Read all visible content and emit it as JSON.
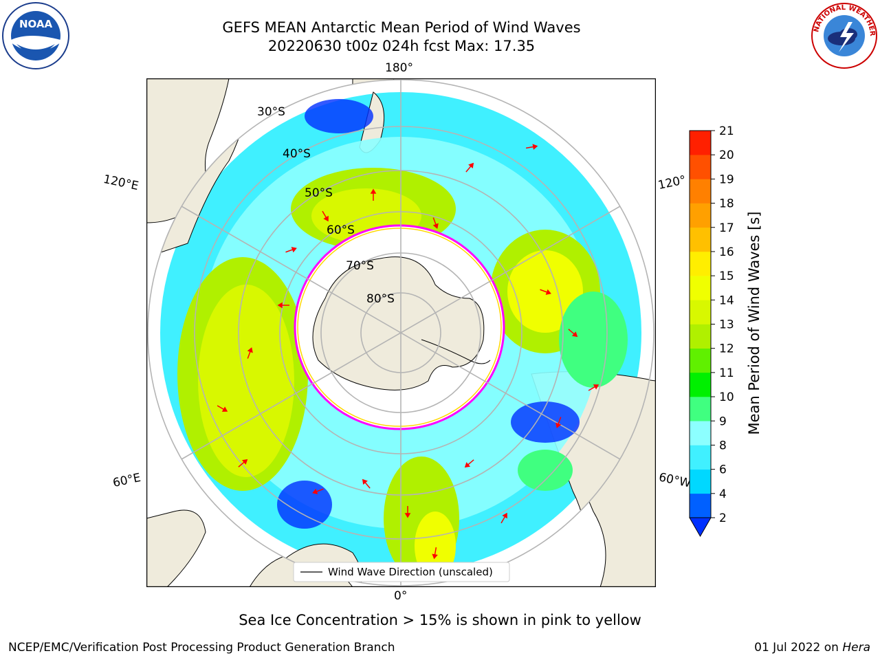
{
  "title": {
    "line1": "GEFS MEAN Antarctic Mean Period of Wind Waves",
    "line2": "20220630 t00z 024h fcst   Max: 17.35"
  },
  "map": {
    "projection": "south polar stereographic",
    "lon_labels": [
      "180°",
      "120°E",
      "120°",
      "60°E",
      "60°W",
      "0°"
    ],
    "lat_labels": [
      "30°S",
      "40°S",
      "50°S",
      "60°S",
      "70°S",
      "80°S"
    ],
    "legend_label": "Wind Wave Direction (unscaled)",
    "arrow_color": "#ff0000",
    "land_color": "#efebdc",
    "sea_ice_edge_colors": [
      "#ff00ff",
      "#ffd700"
    ]
  },
  "colorbar": {
    "label": "Mean Period of Wind Waves [s]",
    "ticks": [
      "2",
      "4",
      "6",
      "8",
      "9",
      "10",
      "11",
      "12",
      "13",
      "14",
      "15",
      "16",
      "17",
      "18",
      "19",
      "20",
      "21"
    ],
    "colors": [
      "#0060ff",
      "#00d8ff",
      "#40f0ff",
      "#8cffff",
      "#40ff80",
      "#00f000",
      "#60f000",
      "#b0f000",
      "#d8f800",
      "#f0ff00",
      "#ffee00",
      "#ffc000",
      "#ffa000",
      "#ff8000",
      "#ff5000",
      "#ff2000"
    ],
    "extend_color": "#0030ff"
  },
  "sea_ice_note": "Sea Ice Concentration > 15% is shown in pink to yellow",
  "footer": {
    "left": "NCEP/EMC/Verification Post Processing Product Generation Branch",
    "date": "01 Jul 2022 on ",
    "machine": "Hera"
  },
  "logos": {
    "noaa": "NOAA",
    "nws": "NATIONAL WEATHER SERVICE"
  }
}
